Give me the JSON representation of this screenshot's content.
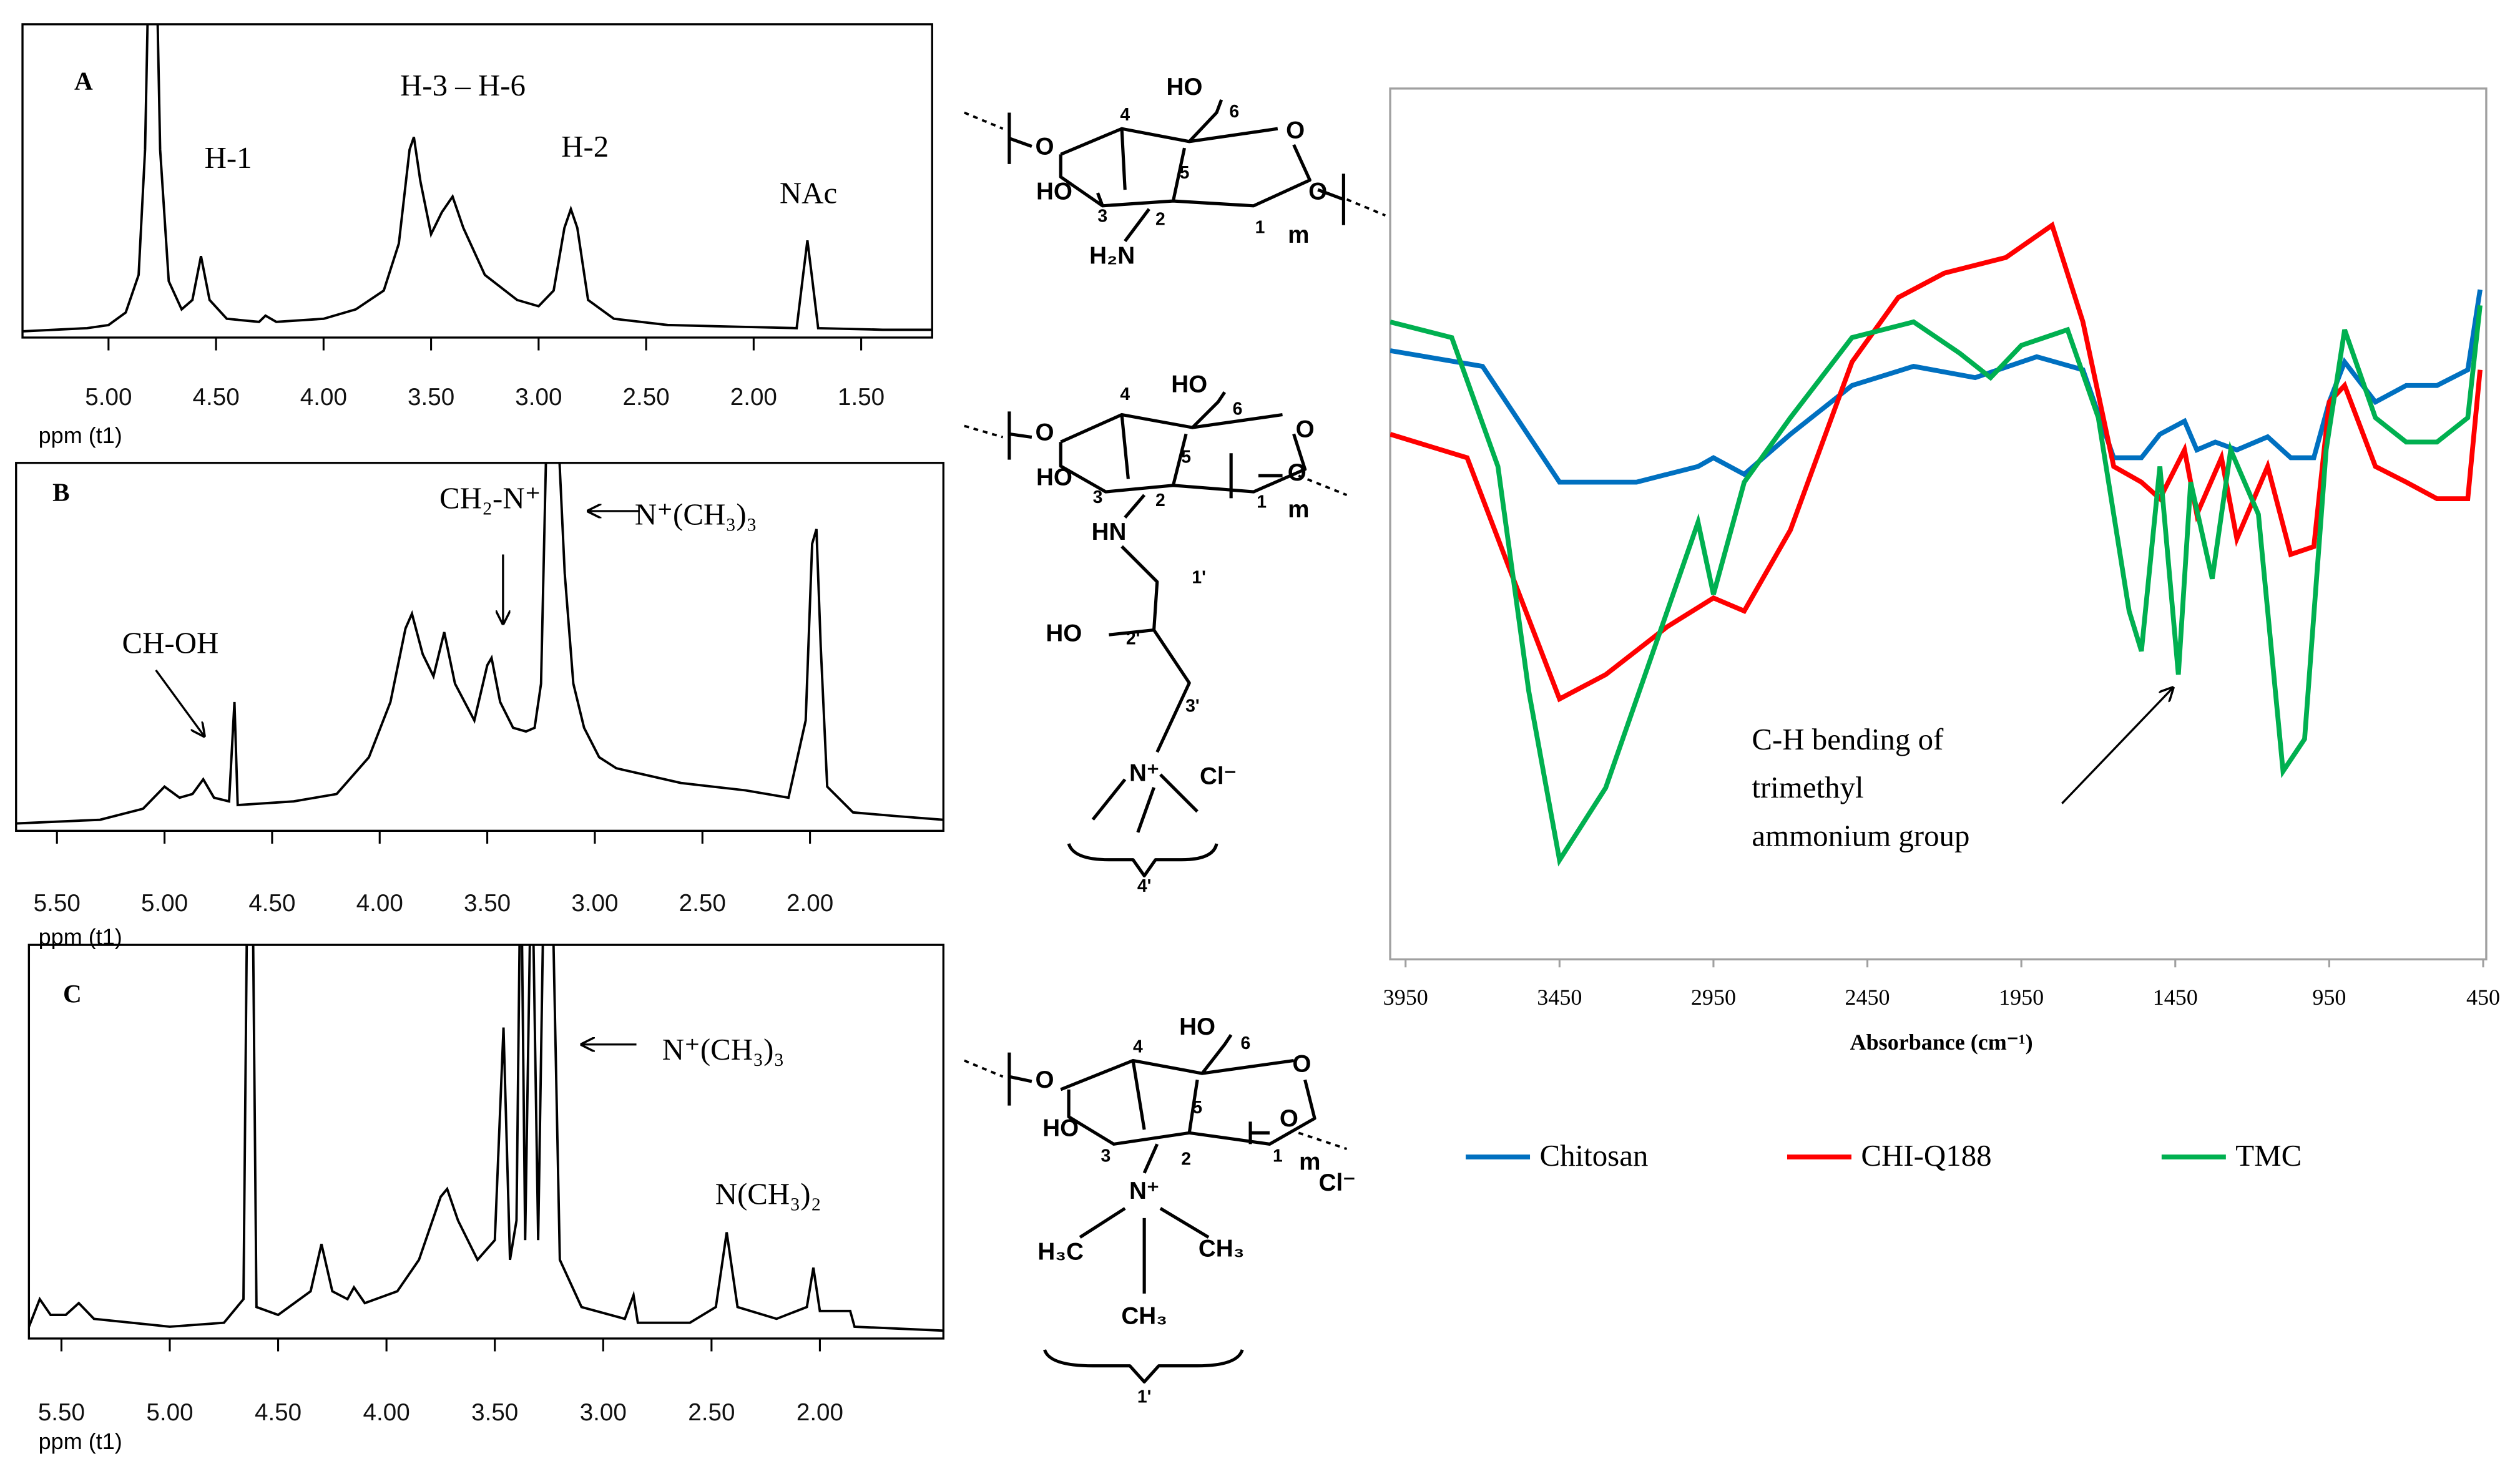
{
  "chart_data": [
    {
      "type": "line",
      "panel_label": "A",
      "x_label": "ppm (t1)",
      "xlim": [
        5.4,
        1.17
      ],
      "ylim": [
        0,
        100
      ],
      "xticks": [
        {
          "value": 5,
          "label": "5.00"
        },
        {
          "value": 4.5,
          "label": "4.50"
        },
        {
          "value": 4,
          "label": "4.00"
        },
        {
          "value": 3.5,
          "label": "3.50"
        },
        {
          "value": 3,
          "label": "3.00"
        },
        {
          "value": 2.5,
          "label": "2.50"
        },
        {
          "value": 2,
          "label": "2.00"
        },
        {
          "value": 1.5,
          "label": "1.50"
        }
      ],
      "annotations": [
        "H-1",
        "H-3 – H-6",
        "H-2",
        "NAc"
      ],
      "series": [
        {
          "color": "#000000",
          "x": [
            5.4,
            5.1,
            5.0,
            4.92,
            4.86,
            4.83,
            4.81,
            4.78,
            4.76,
            4.72,
            4.66,
            4.61,
            4.57,
            4.53,
            4.45,
            4.3,
            4.27,
            4.22,
            4.0,
            3.85,
            3.72,
            3.65,
            3.6,
            3.58,
            3.55,
            3.5,
            3.45,
            3.4,
            3.35,
            3.25,
            3.1,
            3.0,
            2.93,
            2.88,
            2.85,
            2.82,
            2.77,
            2.65,
            2.4,
            2.1,
            1.8,
            1.77,
            1.75,
            1.73,
            1.7,
            1.4,
            1.17
          ],
          "values": [
            2,
            3,
            4,
            8,
            20,
            60,
            130,
            130,
            60,
            18,
            9,
            12,
            26,
            12,
            6,
            5,
            7,
            5,
            6,
            9,
            15,
            30,
            60,
            64,
            50,
            33,
            40,
            45,
            35,
            20,
            12,
            10,
            15,
            35,
            41,
            35,
            12,
            6,
            4,
            3.5,
            3,
            20,
            31,
            20,
            3,
            2.5,
            2.5
          ]
        }
      ]
    },
    {
      "type": "line",
      "panel_label": "B",
      "x_label": "ppm (t1)",
      "xlim": [
        5.69,
        1.38
      ],
      "ylim": [
        0,
        100
      ],
      "xticks": [
        {
          "value": 5.5,
          "label": "5.50"
        },
        {
          "value": 5,
          "label": "5.00"
        },
        {
          "value": 4.5,
          "label": "4.50"
        },
        {
          "value": 4,
          "label": "4.00"
        },
        {
          "value": 3.5,
          "label": "3.50"
        },
        {
          "value": 3,
          "label": "3.00"
        },
        {
          "value": 2.5,
          "label": "2.50"
        },
        {
          "value": 2,
          "label": "2.00"
        }
      ],
      "annotations": [
        "CH-OH",
        "CH₂-N⁺",
        "N⁺(CH₃)₃"
      ],
      "series": [
        {
          "color": "#000000",
          "x": [
            5.69,
            5.3,
            5.1,
            5.0,
            4.93,
            4.87,
            4.82,
            4.77,
            4.7,
            4.675,
            4.66,
            4.4,
            4.2,
            4.05,
            3.95,
            3.88,
            3.85,
            3.8,
            3.75,
            3.7,
            3.65,
            3.56,
            3.5,
            3.48,
            3.44,
            3.38,
            3.32,
            3.28,
            3.25,
            3.22,
            3.18,
            3.14,
            3.1,
            3.05,
            2.98,
            2.9,
            2.6,
            2.3,
            2.1,
            2.02,
            1.99,
            1.97,
            1.95,
            1.92,
            1.8,
            1.6,
            1.38
          ],
          "values": [
            2,
            3,
            6,
            12,
            9,
            10,
            14,
            9,
            8,
            35,
            7,
            8,
            10,
            20,
            35,
            55,
            59,
            48,
            42,
            54,
            40,
            30,
            45,
            47,
            35,
            28,
            27,
            28,
            40,
            120,
            120,
            70,
            40,
            28,
            20,
            17,
            13,
            11,
            9,
            30,
            78,
            82,
            50,
            12,
            5,
            4,
            3
          ]
        }
      ]
    },
    {
      "type": "line",
      "panel_label": "C",
      "x_label": "ppm (t1)",
      "xlim": [
        5.65,
        1.43
      ],
      "ylim": [
        0,
        100
      ],
      "xticks": [
        {
          "value": 5.5,
          "label": "5.50"
        },
        {
          "value": 5,
          "label": "5.00"
        },
        {
          "value": 4.5,
          "label": "4.50"
        },
        {
          "value": 4,
          "label": "4.00"
        },
        {
          "value": 3.5,
          "label": "3.50"
        },
        {
          "value": 3,
          "label": "3.00"
        },
        {
          "value": 2.5,
          "label": "2.50"
        },
        {
          "value": 2,
          "label": "2.00"
        }
      ],
      "annotations": [
        "N⁺(CH₃)₃",
        "N(CH₃)₂"
      ],
      "series": [
        {
          "color": "#000000",
          "x": [
            5.65,
            5.6,
            5.55,
            5.48,
            5.42,
            5.35,
            5.0,
            4.75,
            4.66,
            4.64,
            4.62,
            4.6,
            4.5,
            4.35,
            4.3,
            4.25,
            4.18,
            4.15,
            4.1,
            3.95,
            3.85,
            3.75,
            3.72,
            3.67,
            3.58,
            3.5,
            3.46,
            3.43,
            3.4,
            3.38,
            3.36,
            3.33,
            3.3,
            3.27,
            3.24,
            3.2,
            3.1,
            2.9,
            2.86,
            2.84,
            2.6,
            2.48,
            2.43,
            2.38,
            2.2,
            2.06,
            2.03,
            2.0,
            1.86,
            1.84,
            1.43
          ],
          "values": [
            3,
            10,
            6,
            6,
            9,
            5,
            3,
            4,
            10,
            130,
            130,
            8,
            6,
            12,
            24,
            12,
            10,
            13,
            9,
            12,
            20,
            36,
            38,
            30,
            20,
            25,
            79,
            20,
            30,
            130,
            25,
            130,
            25,
            130,
            130,
            20,
            8,
            5,
            11,
            4,
            4,
            8,
            27,
            8,
            5,
            8,
            18,
            7,
            7,
            3,
            2
          ]
        }
      ]
    },
    {
      "type": "line",
      "x_label": "Absorbance (cm⁻¹)",
      "xlim": [
        4000,
        440
      ],
      "ylim": [
        0,
        100
      ],
      "xticks": [
        3950,
        3450,
        2950,
        2450,
        1950,
        1450,
        950,
        450
      ],
      "legend": "bottom",
      "annotations": [
        "C-H bending of",
        "trimethyl",
        "ammonium group"
      ],
      "series": [
        {
          "name": "Chitosan",
          "color": "#0070c0",
          "x": [
            4000,
            3700,
            3450,
            3200,
            3000,
            2950,
            2850,
            2700,
            2500,
            2300,
            2100,
            1900,
            1750,
            1650,
            1560,
            1500,
            1420,
            1380,
            1320,
            1250,
            1150,
            1075,
            1000,
            950,
            900,
            800,
            700,
            600,
            500,
            460
          ],
          "values": [
            69.9,
            68.1,
            54.8,
            54.8,
            56.6,
            57.6,
            55.7,
            60.3,
            65.9,
            68.1,
            66.8,
            69.2,
            67.7,
            57.6,
            57.6,
            60.3,
            61.8,
            58.5,
            59.4,
            58.5,
            60,
            57.6,
            57.6,
            64,
            68.6,
            64,
            65.9,
            65.9,
            67.7,
            76.9
          ]
        },
        {
          "name": "CHI-Q188",
          "color": "#ff0000",
          "x": [
            4000,
            3750,
            3600,
            3450,
            3300,
            3100,
            2950,
            2850,
            2700,
            2500,
            2350,
            2200,
            2000,
            1850,
            1750,
            1650,
            1560,
            1500,
            1420,
            1380,
            1300,
            1250,
            1150,
            1075,
            1000,
            950,
            900,
            800,
            700,
            600,
            500,
            460
          ],
          "values": [
            60.3,
            57.6,
            43.7,
            29.9,
            32.7,
            38.2,
            41.5,
            40,
            49.3,
            68.6,
            76,
            78.8,
            80.6,
            84.3,
            73.2,
            56.6,
            54.8,
            52.9,
            58.5,
            51.1,
            57.6,
            48.3,
            56.6,
            46.5,
            47.4,
            64,
            65.9,
            56.6,
            54.8,
            52.9,
            52.9,
            67.7
          ]
        },
        {
          "name": "TMC",
          "color": "#00b050",
          "x": [
            4000,
            3800,
            3650,
            3550,
            3450,
            3300,
            3100,
            3000,
            2950,
            2850,
            2700,
            2500,
            2300,
            2150,
            2050,
            1950,
            1800,
            1700,
            1600,
            1560,
            1500,
            1440,
            1400,
            1330,
            1270,
            1180,
            1100,
            1030,
            960,
            900,
            800,
            700,
            600,
            500,
            460
          ],
          "values": [
            73.2,
            71.4,
            56.6,
            30.8,
            11.4,
            19.7,
            40,
            50.2,
            41.9,
            54.8,
            62.2,
            71.4,
            73.2,
            69.6,
            66.8,
            70.5,
            72.3,
            62.2,
            40,
            35.4,
            56.6,
            32.7,
            54.8,
            43.7,
            58.5,
            51.1,
            21.6,
            25.3,
            58.5,
            72.3,
            62.2,
            59.4,
            59.4,
            62.2,
            75.1
          ]
        }
      ]
    }
  ],
  "structures": [
    {
      "labels": [
        "O",
        "4",
        "HO",
        "6",
        "O",
        "5",
        "O",
        "HO",
        "3",
        "2",
        "1",
        "m",
        "H₂N"
      ]
    },
    {
      "labels": [
        "O",
        "4",
        "HO",
        "6",
        "O",
        "5",
        "O",
        "HO",
        "3",
        "2",
        "1",
        "m",
        "HN",
        "1'",
        "HO",
        "2'",
        "3'",
        "N⁺",
        "Cl⁻",
        "4'"
      ]
    },
    {
      "labels": [
        "O",
        "4",
        "HO",
        "6",
        "O",
        "5",
        "O",
        "HO",
        "3",
        "2",
        "1",
        "m",
        "N⁺",
        "H₃C",
        "CH₃",
        "CH₃",
        "Cl⁻",
        "1'"
      ]
    }
  ]
}
